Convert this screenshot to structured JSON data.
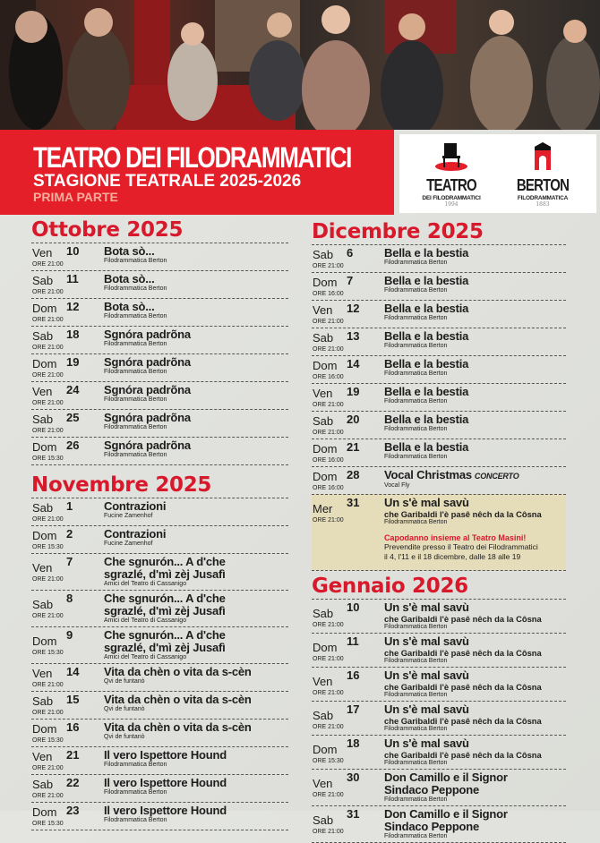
{
  "header": {
    "title": "TEATRO DEI FILODRAMMATICI",
    "subtitle": "STAGIONE TEATRALE 2025-2026",
    "part": "PRIMA PARTE"
  },
  "logos": [
    {
      "name": "TEATRO",
      "sub": "DEI FILODRAMMATICI",
      "year": "1994",
      "icon": "chair-icon"
    },
    {
      "name": "BERTON",
      "sub": "FILODRAMMATICA",
      "year": "1883",
      "icon": "tower-icon"
    }
  ],
  "colors": {
    "accent": "#e41f2a",
    "month": "#d8192b",
    "highlight": "#e5dcba",
    "background": "#dfe0dc"
  },
  "left_months": [
    {
      "title": "Ottobre 2025",
      "events": [
        {
          "day": "Ven",
          "date": "10",
          "time": "ORE 21:00",
          "title": "Bota sò...",
          "company": "Filodrammatica Berton"
        },
        {
          "day": "Sab",
          "date": "11",
          "time": "ORE 21:00",
          "title": "Bota sò...",
          "company": "Filodrammatica Berton"
        },
        {
          "day": "Dom",
          "date": "12",
          "time": "ORE 21:00",
          "title": "Bota sò...",
          "company": "Filodrammatica Berton"
        },
        {
          "day": "Sab",
          "date": "18",
          "time": "ORE 21:00",
          "title": "Sgnóra padrõna",
          "company": "Filodrammatica Berton"
        },
        {
          "day": "Dom",
          "date": "19",
          "time": "ORE 21:00",
          "title": "Sgnóra padrõna",
          "company": "Filodrammatica Berton"
        },
        {
          "day": "Ven",
          "date": "24",
          "time": "ORE 21:00",
          "title": "Sgnóra padrõna",
          "company": "Filodrammatica Berton"
        },
        {
          "day": "Sab",
          "date": "25",
          "time": "ORE 21:00",
          "title": "Sgnóra padrõna",
          "company": "Filodrammatica Berton"
        },
        {
          "day": "Dom",
          "date": "26",
          "time": "ORE 15:30",
          "title": "Sgnóra padrõna",
          "company": "Filodrammatica Berton"
        }
      ]
    },
    {
      "title": "Novembre 2025",
      "events": [
        {
          "day": "Sab",
          "date": "1",
          "time": "ORE 21:00",
          "title": "Contrazioni",
          "company": "Fucine Zamenhof"
        },
        {
          "day": "Dom",
          "date": "2",
          "time": "ORE 15:30",
          "title": "Contrazioni",
          "company": "Fucine Zamenhof"
        },
        {
          "day": "Ven",
          "date": "7",
          "time": "ORE 21:00",
          "title": "Che sgnurón... A d'che sgrazlé, d'mì zèj Jusafì",
          "company": "Amici del Teatro di Cassanigo"
        },
        {
          "day": "Sab",
          "date": "8",
          "time": "ORE 21:00",
          "title": "Che sgnurón... A d'che sgrazlé, d'mì zèj Jusafì",
          "company": "Amici del Teatro di Cassanigo"
        },
        {
          "day": "Dom",
          "date": "9",
          "time": "ORE 15:30",
          "title": "Che sgnurón... A d'che sgrazlé, d'mì zèj Jusafì",
          "company": "Amici del Teatro di Cassanigo"
        },
        {
          "day": "Ven",
          "date": "14",
          "time": "ORE 21:00",
          "title": "Vita da chèn o vita da s-cèn",
          "company": "Qvi de funtanò"
        },
        {
          "day": "Sab",
          "date": "15",
          "time": "ORE 21:00",
          "title": "Vita da chèn o vita da s-cèn",
          "company": "Qvi de funtanò"
        },
        {
          "day": "Dom",
          "date": "16",
          "time": "ORE 15:30",
          "title": "Vita da chèn o vita da s-cèn",
          "company": "Qvi de funtanò"
        },
        {
          "day": "Ven",
          "date": "21",
          "time": "ORE 21:00",
          "title": "Il vero Ispettore Hound",
          "company": "Filodrammatica Berton"
        },
        {
          "day": "Sab",
          "date": "22",
          "time": "ORE 21:00",
          "title": "Il vero Ispettore Hound",
          "company": "Filodrammatica Berton"
        },
        {
          "day": "Dom",
          "date": "23",
          "time": "ORE 15:30",
          "title": "Il vero Ispettore Hound",
          "company": "Filodrammatica Berton"
        }
      ]
    }
  ],
  "right_months": [
    {
      "title": "Dicembre 2025",
      "events": [
        {
          "day": "Sab",
          "date": "6",
          "time": "ORE 21:00",
          "title": "Bella e la bestia",
          "company": "Filodrammatica Berton"
        },
        {
          "day": "Dom",
          "date": "7",
          "time": "ORE 16:00",
          "title": "Bella e la bestia",
          "company": "Filodrammatica Berton"
        },
        {
          "day": "Ven",
          "date": "12",
          "time": "ORE 21:00",
          "title": "Bella e la bestia",
          "company": "Filodrammatica Berton"
        },
        {
          "day": "Sab",
          "date": "13",
          "time": "ORE 21:00",
          "title": "Bella e la bestia",
          "company": "Filodrammatica Berton"
        },
        {
          "day": "Dom",
          "date": "14",
          "time": "ORE 16:00",
          "title": "Bella e la bestia",
          "company": "Filodrammatica Berton"
        },
        {
          "day": "Ven",
          "date": "19",
          "time": "ORE 21:00",
          "title": "Bella e la bestia",
          "company": "Filodrammatica Berton"
        },
        {
          "day": "Sab",
          "date": "20",
          "time": "ORE 21:00",
          "title": "Bella e la bestia",
          "company": "Filodrammatica Berton"
        },
        {
          "day": "Dom",
          "date": "21",
          "time": "ORE 16:00",
          "title": "Bella e la bestia",
          "company": "Filodrammatica Berton"
        },
        {
          "day": "Dom",
          "date": "28",
          "time": "ORE 16:00",
          "title": "Vocal Christmas",
          "tag": "CONCERTO",
          "company": "Vocal Fly"
        },
        {
          "day": "Mer",
          "date": "31",
          "time": "ORE 21:00",
          "title": "Un s'è mal savù",
          "subtitle": "che Garibaldi l'è pasê nêch da la Côsna",
          "company": "Filodrammatica Berton",
          "highlight": true,
          "promo_title": "Capodanno insieme al Teatro Masini!",
          "promo_lines": [
            "Prevendite presso il Teatro dei Filodrammatici",
            "il 4, l'11 e il 18 dicembre, dalle 18 alle 19"
          ]
        }
      ]
    },
    {
      "title": "Gennaio 2026",
      "events": [
        {
          "day": "Sab",
          "date": "10",
          "time": "ORE 21:00",
          "title": "Un s'è mal savù",
          "subtitle": "che Garibaldi l'è pasê nêch da la Côsna",
          "company": "Filodrammatica Berton"
        },
        {
          "day": "Dom",
          "date": "11",
          "time": "ORE 21:00",
          "title": "Un s'è mal savù",
          "subtitle": "che Garibaldi l'è pasê nêch da la Côsna",
          "company": "Filodrammatica Berton"
        },
        {
          "day": "Ven",
          "date": "16",
          "time": "ORE 21:00",
          "title": "Un s'è mal savù",
          "subtitle": "che Garibaldi l'è pasê nêch da la Côsna",
          "company": "Filodrammatica Berton"
        },
        {
          "day": "Sab",
          "date": "17",
          "time": "ORE 21:00",
          "title": "Un s'è mal savù",
          "subtitle": "che Garibaldi l'è pasê nêch da la Côsna",
          "company": "Filodrammatica Berton"
        },
        {
          "day": "Dom",
          "date": "18",
          "time": "ORE 15:30",
          "title": "Un s'è mal savù",
          "subtitle": "che Garibaldi l'è pasê nêch da la Côsna",
          "company": "Filodrammatica Berton"
        },
        {
          "day": "Ven",
          "date": "30",
          "time": "ORE 21:00",
          "title": "Don Camillo e il Signor Sindaco Peppone",
          "company": "Filodrammatica Berton"
        },
        {
          "day": "Sab",
          "date": "31",
          "time": "ORE 21:00",
          "title": "Don Camillo e il Signor Sindaco Peppone",
          "company": "Filodrammatica Berton"
        }
      ]
    }
  ]
}
